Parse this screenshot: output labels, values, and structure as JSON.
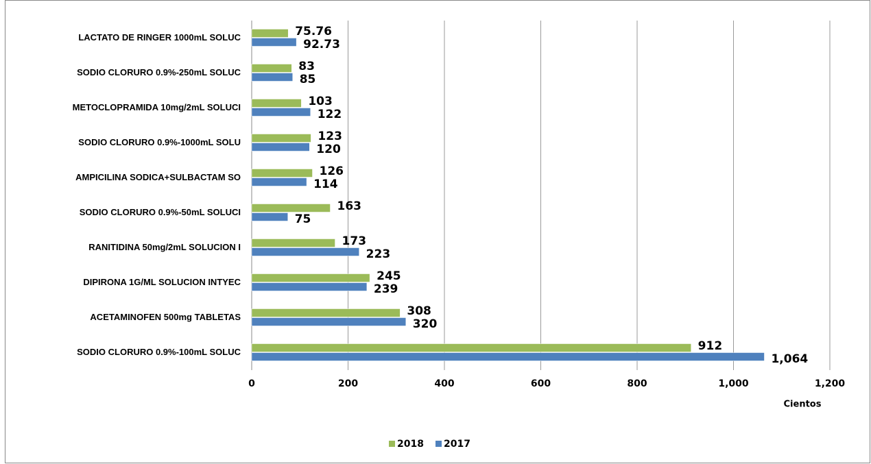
{
  "chart_data": {
    "type": "barh",
    "categories": [
      "LACTATO DE RINGER 1000mL SOLUC",
      "SODIO CLORURO 0.9%-250mL SOLUC",
      "METOCLOPRAMIDA 10mg/2mL SOLUCI",
      "SODIO CLORURO 0.9%-1000mL SOLU",
      "AMPICILINA SODICA+SULBACTAM SO",
      "SODIO CLORURO 0.9%-50mL SOLUCI",
      "RANITIDINA 50mg/2mL SOLUCION I",
      "DIPIRONA 1G/ML SOLUCION INTYEC",
      "ACETAMINOFEN 500mg TABLETAS",
      "SODIO CLORURO 0.9%-100mL SOLUC"
    ],
    "series": [
      {
        "name": "2018",
        "color": "#9bbb59",
        "values": [
          75.76,
          83,
          103,
          123,
          126,
          163,
          173,
          245,
          308,
          912
        ]
      },
      {
        "name": "2017",
        "color": "#4f81bd",
        "values": [
          92.73,
          85,
          122,
          120,
          114,
          75,
          223,
          239,
          320,
          1064
        ],
        "value_labels": [
          "92.73",
          "85",
          "122",
          "120",
          "114",
          "75",
          "223",
          "239",
          "320",
          "1,064"
        ]
      }
    ],
    "xlabel": "Cientos",
    "xlim": [
      0,
      1200
    ],
    "xticks": [
      0,
      200,
      400,
      600,
      800,
      {
        "value": 1000,
        "label": "1,000"
      },
      {
        "value": 1200,
        "label": "1,200"
      }
    ],
    "grid": true,
    "legend": "bottom"
  }
}
